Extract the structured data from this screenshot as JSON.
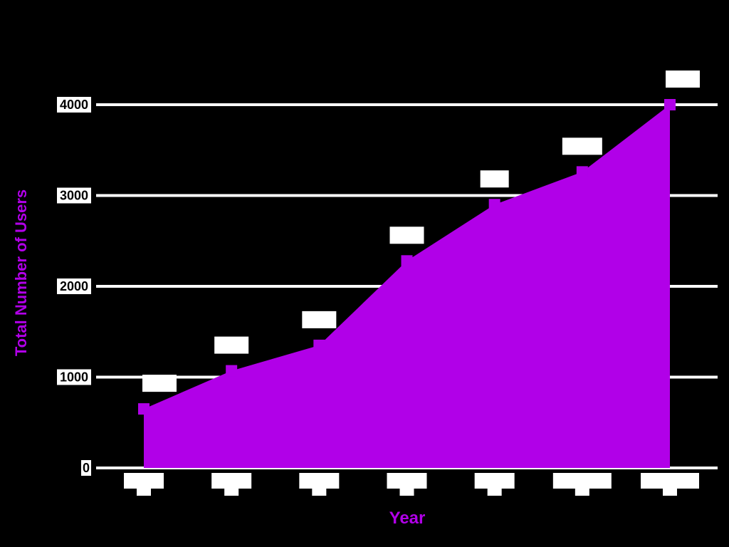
{
  "chart_data": {
    "type": "area",
    "title": "",
    "xlabel": "Year",
    "ylabel": "Total Number of Users",
    "ylim": [
      0,
      4000
    ],
    "yticks": [
      0,
      1000,
      2000,
      3000,
      4000
    ],
    "ytick_labels": [
      "0",
      "1000",
      "2000",
      "3000",
      "4000"
    ],
    "categories": [
      "",
      "",
      "",
      "",
      "",
      "",
      ""
    ],
    "values": [
      650,
      1070,
      1350,
      2280,
      2900,
      3260,
      4000
    ],
    "data_labels": [
      "",
      "",
      "",
      "",
      "",
      "",
      ""
    ],
    "grid": "horizontal",
    "legend": "none",
    "colors": {
      "background": "#000000",
      "area": "#b100e8",
      "gridline": "#ffffff",
      "axis_title": "#b100e8",
      "label_box": "#ffffff",
      "label_text": "#000000"
    }
  }
}
